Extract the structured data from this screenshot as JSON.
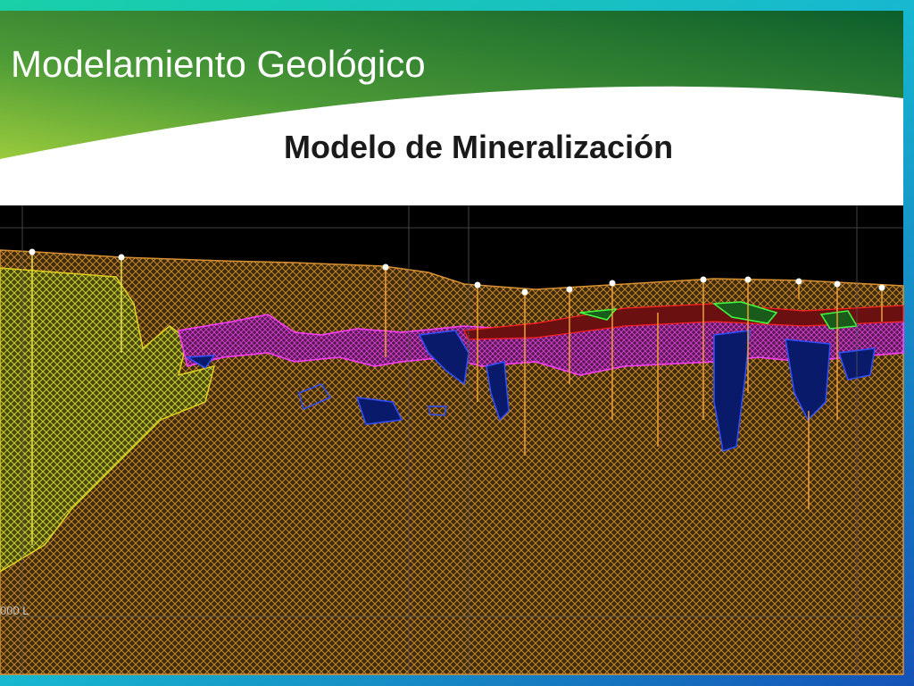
{
  "header": {
    "title": "Modelamiento Geológico",
    "subtitle": "Modelo de Mineralización"
  },
  "section": {
    "level_label": "000 L"
  }
}
